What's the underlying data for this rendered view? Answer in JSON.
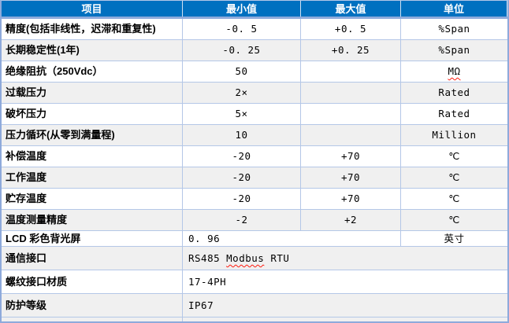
{
  "table": {
    "colors": {
      "header_bg": "#0070C0",
      "header_text": "#FFFFFF",
      "row_alt_bg": "#F0F0F0",
      "border_light": "#B4C7E7",
      "border_strong": "#8EAADB",
      "squiggle_red": "#FF1A0E"
    },
    "headers": [
      "项目",
      "最小值",
      "最大值",
      "单位"
    ],
    "rows": [
      {
        "type": "normal",
        "item": "精度(包括非线性，迟滞和重复性)",
        "min": "-0. 5",
        "max": "+0. 5",
        "unit": "%Span"
      },
      {
        "type": "normal",
        "item": "长期稳定性(1年)",
        "min": "-0. 25",
        "max": "+0. 25",
        "unit": "%Span"
      },
      {
        "type": "normal",
        "item": "绝缘阻抗（250Vdc）",
        "min": "50",
        "max": "",
        "unit": "MΩ",
        "unit_squiggle": true
      },
      {
        "type": "normal",
        "item": "过载压力",
        "min": "2×",
        "max": "",
        "unit": "Rated"
      },
      {
        "type": "normal",
        "item": "破坏压力",
        "min": "5×",
        "max": "",
        "unit": "Rated"
      },
      {
        "type": "normal",
        "item": "压力循环(从零到满量程)",
        "min": "10",
        "max": "",
        "unit": "Million"
      },
      {
        "type": "normal",
        "item": "补偿温度",
        "min": "-20",
        "max": "+70",
        "unit": "℃"
      },
      {
        "type": "normal",
        "item": "工作温度",
        "min": "-20",
        "max": "+70",
        "unit": "℃"
      },
      {
        "type": "normal",
        "item": "贮存温度",
        "min": "-20",
        "max": "+70",
        "unit": "℃"
      },
      {
        "type": "normal",
        "item": "温度测量精度",
        "min": "-2",
        "max": "+2",
        "unit": "℃"
      },
      {
        "type": "span2",
        "item": "LCD 彩色背光屏",
        "value": "0. 96",
        "unit": "英寸"
      },
      {
        "type": "span3",
        "item": "通信接口",
        "value_pre": "RS485 ",
        "value_squiggle": "Modbus",
        "value_post": " RTU"
      },
      {
        "type": "span3",
        "item": "螺纹接口材质",
        "value": "17-4PH"
      },
      {
        "type": "span3",
        "item": "防护等级",
        "value": "IP67"
      }
    ]
  }
}
